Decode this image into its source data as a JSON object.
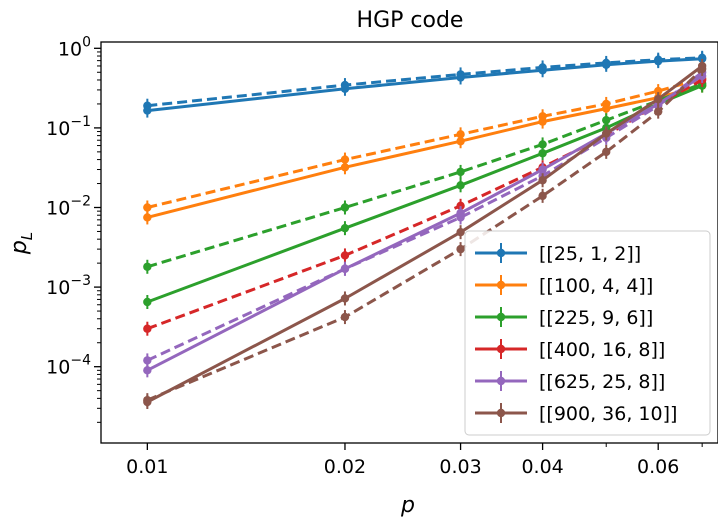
{
  "chart_data": {
    "type": "line",
    "title": "HGP code",
    "xlabel": "p",
    "ylabel": "p_L",
    "xscale": "log",
    "yscale": "log",
    "xlim": [
      0.0085,
      0.074
    ],
    "ylim": [
      1.1e-05,
      1.2
    ],
    "x": [
      0.01,
      0.02,
      0.03,
      0.04,
      0.05,
      0.06,
      0.07
    ],
    "x_ticks": [
      {
        "value": 0.01,
        "label": "0.01"
      },
      {
        "value": 0.02,
        "label": "0.02"
      },
      {
        "value": 0.03,
        "label": "0.03"
      },
      {
        "value": 0.04,
        "label": "0.04"
      },
      {
        "value": 0.06,
        "label": "0.06"
      }
    ],
    "y_ticks": [
      {
        "value": 1,
        "base": "10",
        "exp": "0"
      },
      {
        "value": 0.1,
        "base": "10",
        "exp": "−1"
      },
      {
        "value": 0.01,
        "base": "10",
        "exp": "−2"
      },
      {
        "value": 0.001,
        "base": "10",
        "exp": "−3"
      },
      {
        "value": 0.0001,
        "base": "10",
        "exp": "−4"
      }
    ],
    "legend_position": "lower-right",
    "series": [
      {
        "name": "[[25, 1, 2]]",
        "color": "#1f77b4",
        "solid": [
          0.165,
          0.31,
          0.43,
          0.53,
          0.62,
          0.69,
          0.74
        ],
        "dashed": [
          0.19,
          0.345,
          0.47,
          0.575,
          0.655,
          0.72,
          0.76
        ]
      },
      {
        "name": "[[100, 4, 4]]",
        "color": "#ff7f0e",
        "solid": [
          0.0075,
          0.032,
          0.068,
          0.12,
          0.175,
          0.24,
          0.34
        ],
        "dashed": [
          0.01,
          0.04,
          0.083,
          0.14,
          0.2,
          0.29,
          0.42
        ]
      },
      {
        "name": "[[225, 9, 6]]",
        "color": "#2ca02c",
        "solid": [
          0.00065,
          0.0055,
          0.019,
          0.048,
          0.1,
          0.2,
          0.34
        ],
        "dashed": [
          0.0018,
          0.01,
          0.028,
          0.062,
          0.125,
          0.22,
          0.36
        ]
      },
      {
        "name": "[[400, 16, 8]]",
        "color": "#d62728",
        "solid": [
          null,
          null,
          null,
          null,
          null,
          null,
          null
        ],
        "dashed": [
          0.0003,
          0.0025,
          0.0105,
          0.032,
          0.08,
          0.2,
          0.4
        ]
      },
      {
        "name": "[[625, 25, 8]]",
        "color": "#9467bd",
        "solid": [
          9e-05,
          0.0017,
          0.0085,
          0.03,
          0.085,
          0.2,
          0.45
        ],
        "dashed": [
          0.00012,
          0.0017,
          0.0075,
          0.025,
          0.075,
          0.19,
          0.5
        ]
      },
      {
        "name": "[[900, 36, 10]]",
        "color": "#8c564b",
        "solid": [
          3.6e-05,
          0.00072,
          0.0049,
          0.022,
          0.085,
          0.23,
          0.6
        ],
        "dashed": [
          3.8e-05,
          0.00042,
          0.003,
          0.014,
          0.05,
          0.16,
          0.55
        ]
      }
    ]
  }
}
